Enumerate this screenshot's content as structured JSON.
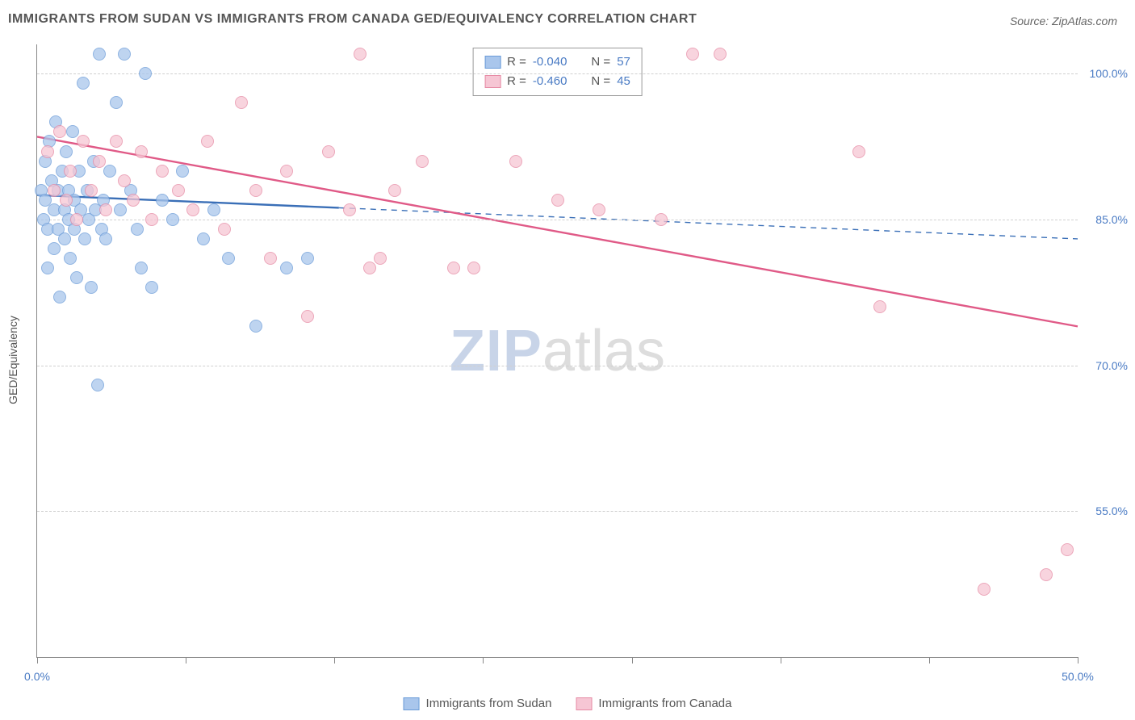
{
  "title": "IMMIGRANTS FROM SUDAN VS IMMIGRANTS FROM CANADA GED/EQUIVALENCY CORRELATION CHART",
  "source_label": "Source: ",
  "source_value": "ZipAtlas.com",
  "y_axis_label": "GED/Equivalency",
  "watermark": {
    "a": "ZIP",
    "b": "atlas"
  },
  "chart": {
    "type": "scatter",
    "xlim": [
      0,
      50
    ],
    "ylim": [
      40,
      103
    ],
    "x_ticks_minor": [
      0,
      7.14,
      14.28,
      21.42,
      28.57,
      35.71,
      42.85,
      50
    ],
    "x_tick_labels": [
      {
        "x": 0,
        "label": "0.0%"
      },
      {
        "x": 50,
        "label": "50.0%"
      }
    ],
    "y_grid": [
      {
        "y": 100,
        "label": "100.0%"
      },
      {
        "y": 85,
        "label": "85.0%"
      },
      {
        "y": 70,
        "label": "70.0%"
      },
      {
        "y": 55,
        "label": "55.0%"
      }
    ],
    "grid_color": "#d0d0d0",
    "background_color": "#ffffff",
    "series": [
      {
        "name": "Immigrants from Sudan",
        "color_fill": "#a9c6ec",
        "color_stroke": "#6a9bd8",
        "marker_radius": 8,
        "marker_opacity": 0.75,
        "trend": {
          "stroke": "#3a6fb7",
          "width": 2.4,
          "solid_until_x": 14.5,
          "y_start": 87.5,
          "y_end": 83.0
        },
        "stats": {
          "R": "-0.040",
          "N": "57"
        },
        "points": [
          [
            0.2,
            88
          ],
          [
            0.3,
            85
          ],
          [
            0.4,
            91
          ],
          [
            0.4,
            87
          ],
          [
            0.5,
            80
          ],
          [
            0.5,
            84
          ],
          [
            0.6,
            93
          ],
          [
            0.7,
            89
          ],
          [
            0.8,
            86
          ],
          [
            0.8,
            82
          ],
          [
            0.9,
            95
          ],
          [
            1.0,
            88
          ],
          [
            1.0,
            84
          ],
          [
            1.1,
            77
          ],
          [
            1.2,
            90
          ],
          [
            1.3,
            86
          ],
          [
            1.3,
            83
          ],
          [
            1.4,
            92
          ],
          [
            1.5,
            88
          ],
          [
            1.5,
            85
          ],
          [
            1.6,
            81
          ],
          [
            1.7,
            94
          ],
          [
            1.8,
            87
          ],
          [
            1.8,
            84
          ],
          [
            1.9,
            79
          ],
          [
            2.0,
            90
          ],
          [
            2.1,
            86
          ],
          [
            2.2,
            99
          ],
          [
            2.3,
            83
          ],
          [
            2.4,
            88
          ],
          [
            2.5,
            85
          ],
          [
            2.6,
            78
          ],
          [
            2.7,
            91
          ],
          [
            2.8,
            86
          ],
          [
            2.9,
            68
          ],
          [
            3.0,
            102
          ],
          [
            3.1,
            84
          ],
          [
            3.2,
            87
          ],
          [
            3.3,
            83
          ],
          [
            3.5,
            90
          ],
          [
            3.8,
            97
          ],
          [
            4.0,
            86
          ],
          [
            4.2,
            102
          ],
          [
            4.5,
            88
          ],
          [
            4.8,
            84
          ],
          [
            5.0,
            80
          ],
          [
            5.2,
            100
          ],
          [
            5.5,
            78
          ],
          [
            6.0,
            87
          ],
          [
            6.5,
            85
          ],
          [
            7.0,
            90
          ],
          [
            8.0,
            83
          ],
          [
            8.5,
            86
          ],
          [
            9.2,
            81
          ],
          [
            10.5,
            74
          ],
          [
            12.0,
            80
          ],
          [
            13.0,
            81
          ]
        ]
      },
      {
        "name": "Immigrants from Canada",
        "color_fill": "#f6c6d4",
        "color_stroke": "#e68aa4",
        "marker_radius": 8,
        "marker_opacity": 0.75,
        "trend": {
          "stroke": "#e05a87",
          "width": 2.4,
          "solid_until_x": 50,
          "y_start": 93.5,
          "y_end": 74.0
        },
        "stats": {
          "R": "-0.460",
          "N": "45"
        },
        "points": [
          [
            0.5,
            92
          ],
          [
            0.8,
            88
          ],
          [
            1.1,
            94
          ],
          [
            1.4,
            87
          ],
          [
            1.6,
            90
          ],
          [
            1.9,
            85
          ],
          [
            2.2,
            93
          ],
          [
            2.6,
            88
          ],
          [
            3.0,
            91
          ],
          [
            3.3,
            86
          ],
          [
            3.8,
            93
          ],
          [
            4.2,
            89
          ],
          [
            4.6,
            87
          ],
          [
            5.0,
            92
          ],
          [
            5.5,
            85
          ],
          [
            6.0,
            90
          ],
          [
            6.8,
            88
          ],
          [
            7.5,
            86
          ],
          [
            8.2,
            93
          ],
          [
            9.0,
            84
          ],
          [
            9.8,
            97
          ],
          [
            10.5,
            88
          ],
          [
            11.2,
            81
          ],
          [
            12.0,
            90
          ],
          [
            13.0,
            75
          ],
          [
            14.0,
            92
          ],
          [
            15.0,
            86
          ],
          [
            15.5,
            102
          ],
          [
            16.0,
            80
          ],
          [
            16.5,
            81
          ],
          [
            17.2,
            88
          ],
          [
            18.5,
            91
          ],
          [
            20.0,
            80
          ],
          [
            21.0,
            80
          ],
          [
            23.0,
            91
          ],
          [
            25.0,
            87
          ],
          [
            27.0,
            86
          ],
          [
            30.0,
            85
          ],
          [
            31.5,
            102
          ],
          [
            32.8,
            102
          ],
          [
            39.5,
            92
          ],
          [
            40.5,
            76
          ],
          [
            45.5,
            47
          ],
          [
            48.5,
            48.5
          ],
          [
            49.5,
            51
          ]
        ]
      }
    ]
  },
  "legend_top": {
    "r_label": "R = ",
    "n_label": "N = "
  },
  "legend_bottom": {
    "items": [
      {
        "label": "Immigrants from Sudan",
        "fill": "#a9c6ec",
        "stroke": "#6a9bd8"
      },
      {
        "label": "Immigrants from Canada",
        "fill": "#f6c6d4",
        "stroke": "#e68aa4"
      }
    ]
  }
}
